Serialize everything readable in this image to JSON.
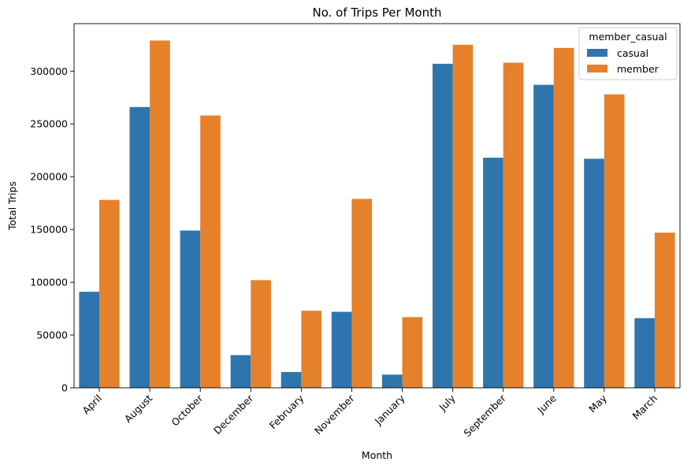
{
  "chart_data": {
    "type": "bar",
    "title": "No. of Trips Per Month",
    "xlabel": "Month",
    "ylabel": "Total Trips",
    "categories": [
      "April",
      "August",
      "October",
      "December",
      "February",
      "November",
      "January",
      "July",
      "September",
      "June",
      "May",
      "March"
    ],
    "series": [
      {
        "name": "casual",
        "color": "#2f75ad",
        "values": [
          91000,
          266000,
          149000,
          31000,
          15000,
          72000,
          12500,
          307000,
          218000,
          287000,
          217000,
          66000
        ]
      },
      {
        "name": "member",
        "color": "#e5802b",
        "values": [
          178000,
          329000,
          258000,
          102000,
          73000,
          179000,
          67000,
          325000,
          308000,
          322000,
          278000,
          147000
        ]
      }
    ],
    "ylim": [
      0,
      345000
    ],
    "yticks": [
      0,
      50000,
      100000,
      150000,
      200000,
      250000,
      300000
    ],
    "ytick_labels": [
      "0",
      "50000",
      "100000",
      "150000",
      "200000",
      "250000",
      "300000"
    ],
    "legend": {
      "title": "member_casual",
      "location": "top-right"
    },
    "grid": false
  }
}
